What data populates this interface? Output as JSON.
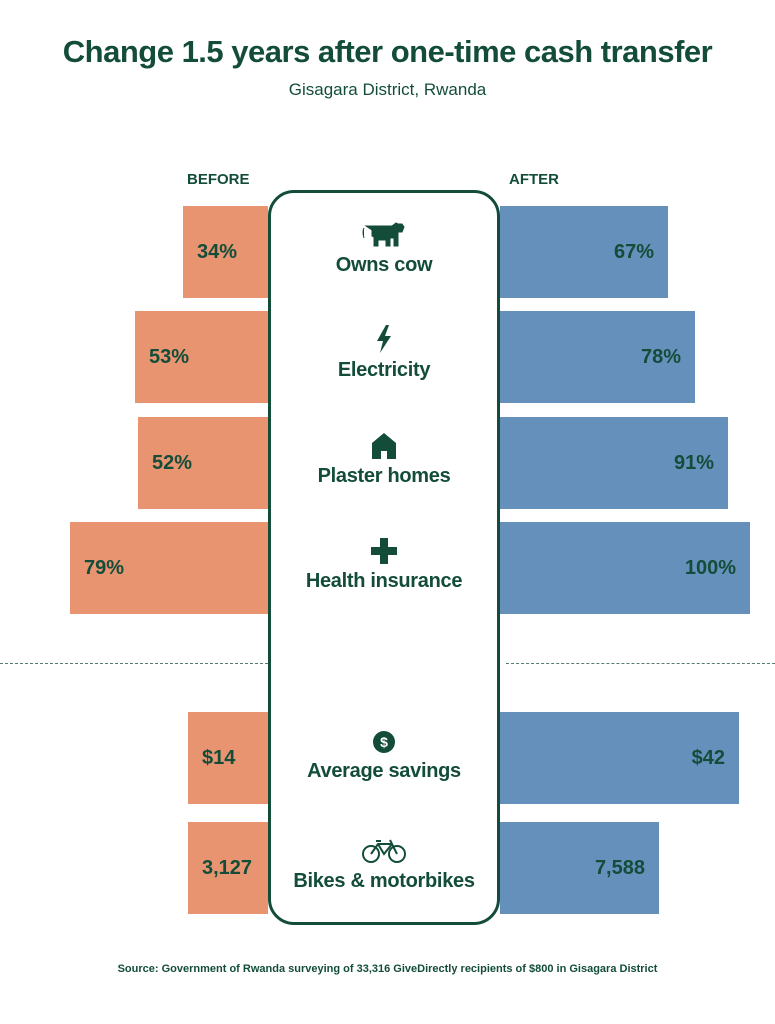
{
  "title": "Change 1.5 years after one-time cash transfer",
  "subtitle": "Gisagara District, Rwanda",
  "chart_data": {
    "type": "bar",
    "title": "Change 1.5 years after one-time cash transfer",
    "subtitle": "Gisagara District, Rwanda",
    "legend": [
      "BEFORE",
      "AFTER"
    ],
    "rows": [
      {
        "category": "Owns cow",
        "icon": "cow-icon",
        "before": 34,
        "after": 67,
        "before_label": "34%",
        "after_label": "67%",
        "unit": "percent"
      },
      {
        "category": "Electricity",
        "icon": "lightning-icon",
        "before": 53,
        "after": 78,
        "before_label": "53%",
        "after_label": "78%",
        "unit": "percent"
      },
      {
        "category": "Plaster homes",
        "icon": "house-icon",
        "before": 52,
        "after": 91,
        "before_label": "52%",
        "after_label": "91%",
        "unit": "percent"
      },
      {
        "category": "Health insurance",
        "icon": "plus-icon",
        "before": 79,
        "after": 100,
        "before_label": "79%",
        "after_label": "100%",
        "unit": "percent"
      },
      {
        "category": "Average savings",
        "icon": "dollar-icon",
        "before": 14,
        "after": 42,
        "before_label": "$14",
        "after_label": "$42",
        "unit": "usd"
      },
      {
        "category": "Bikes & motorbikes",
        "icon": "bicycle-icon",
        "before": 3127,
        "after": 7588,
        "before_label": "3,127",
        "after_label": "7,588",
        "unit": "count"
      }
    ],
    "colors": {
      "before": "#e89470",
      "after": "#6690bc",
      "text": "#134d3a"
    }
  },
  "source": "Source: Government of Rwanda surveying of 33,316 GiveDirectly recipients of $800 in Gisagara District"
}
